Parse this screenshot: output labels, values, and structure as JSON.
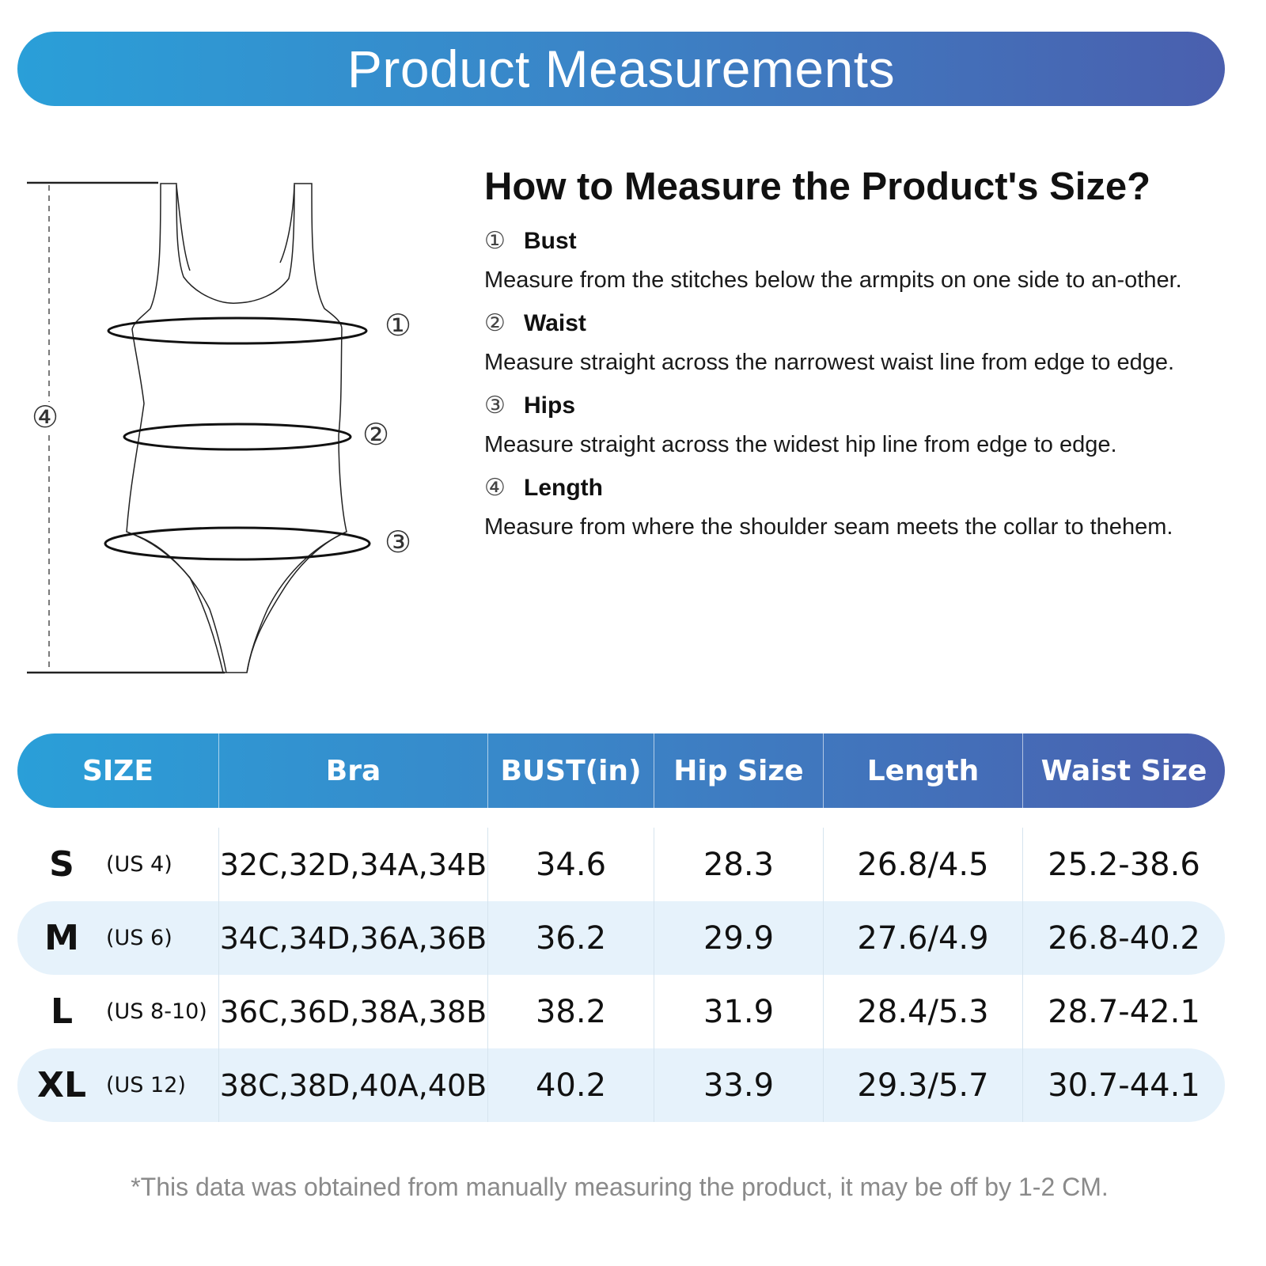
{
  "banner": {
    "title": "Product Measurements"
  },
  "diagram": {
    "markers": {
      "bust": "①",
      "waist": "②",
      "hips": "③",
      "length": "④"
    }
  },
  "howto": {
    "title": "How to Measure the Product's Size?",
    "steps": [
      {
        "num": "①",
        "name": "Bust",
        "desc": "Measure from the stitches below the armpits on one side to an-other."
      },
      {
        "num": "②",
        "name": "Waist",
        "desc": "Measure straight across the narrowest waist line from edge to edge."
      },
      {
        "num": "③",
        "name": "Hips",
        "desc": "Measure straight across the widest hip line from edge to edge."
      },
      {
        "num": "④",
        "name": "Length",
        "desc": "Measure from where the shoulder seam meets the collar to thehem."
      }
    ]
  },
  "table": {
    "headers": [
      "SIZE",
      "Bra",
      "BUST(in)",
      "Hip Size",
      "Length",
      "Waist Size"
    ],
    "rows": [
      {
        "size": "S",
        "us": "(US 4)",
        "bra": "32C,32D,34A,34B",
        "bust": "34.6",
        "hip": "28.3",
        "length": "26.8/4.5",
        "waist": "25.2-38.6"
      },
      {
        "size": "M",
        "us": "(US 6)",
        "bra": "34C,34D,36A,36B",
        "bust": "36.2",
        "hip": "29.9",
        "length": "27.6/4.9",
        "waist": "26.8-40.2"
      },
      {
        "size": "L",
        "us": "(US 8-10)",
        "bra": "36C,36D,38A,38B",
        "bust": "38.2",
        "hip": "31.9",
        "length": "28.4/5.3",
        "waist": "28.7-42.1"
      },
      {
        "size": "XL",
        "us": "(US 12)",
        "bra": "38C,38D,40A,40B",
        "bust": "40.2",
        "hip": "33.9",
        "length": "29.3/5.7",
        "waist": "30.7-44.1"
      }
    ]
  },
  "footnote": "*This data was obtained from manually measuring the product, it may be off by 1-2 CM.",
  "colors": {
    "banner_start": "#2a9fd8",
    "banner_end": "#4a5fae",
    "row_alt": "#e6f2fb",
    "footnote": "#8a8a8a"
  }
}
